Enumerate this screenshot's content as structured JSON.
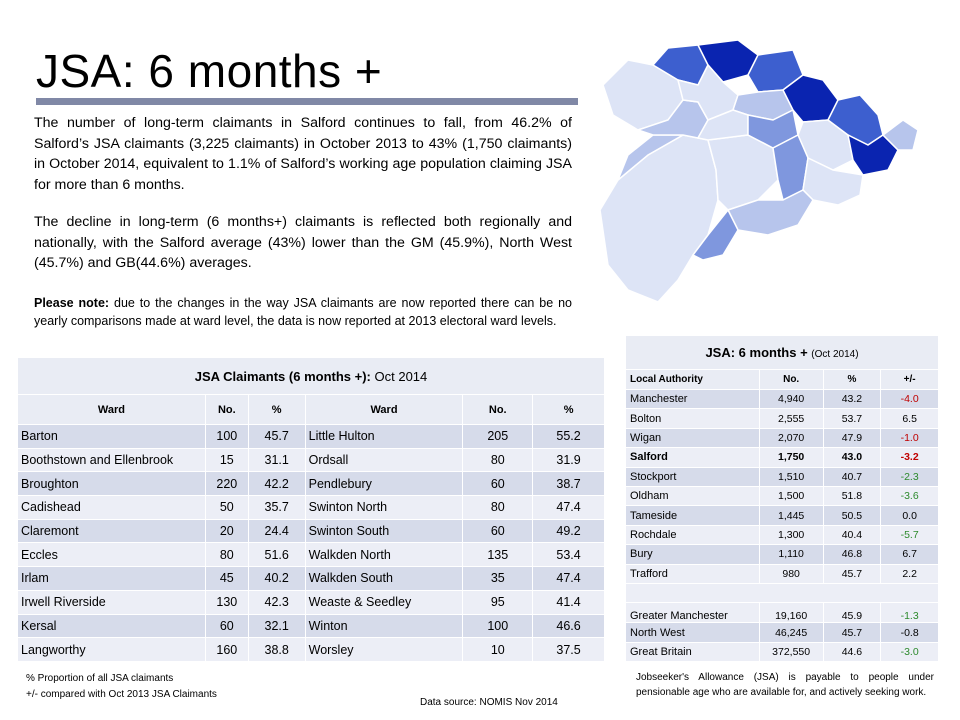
{
  "title": "JSA: 6 months +",
  "para1": "The number of long-term claimants in Salford continues to fall, from 46.2% of Salford’s JSA claimants (3,225 claimants) in October 2013 to 43% (1,750 claimants) in October 2014, equivalent to 1.1% of Salford’s working age population claiming JSA for more than 6 months.",
  "para2": "The decline in long-term (6 months+) claimants is reflected both regionally and nationally, with the Salford average (43%) lower than the GM (45.9%), North West (45.7%) and GB(44.6%) averages.",
  "note_label": "Please note:",
  "note_text": " due to the changes in the way JSA claimants are now reported there can be no yearly comparisons made at ward level, the data is now reported at 2013 electoral ward levels.",
  "map_colors": {
    "darkest": "#0a24b0",
    "dark": "#3d5fcf",
    "medium": "#7f97de",
    "light": "#b7c5ec",
    "lightest": "#dde4f6"
  },
  "ward_table": {
    "title": "JSA Claimants (6 months +):",
    "title_date": "Oct 2014",
    "headers": [
      "Ward",
      "No.",
      "%",
      "Ward",
      "No.",
      "%"
    ],
    "rows": [
      {
        "w1": "Barton",
        "n1": "100",
        "p1": "45.7",
        "w2": "Little Hulton",
        "n2": "205",
        "p2": "55.2"
      },
      {
        "w1": "Boothstown  and Ellenbrook",
        "n1": "15",
        "p1": "31.1",
        "w2": "Ordsall",
        "n2": "80",
        "p2": "31.9"
      },
      {
        "w1": "Broughton",
        "n1": "220",
        "p1": "42.2",
        "w2": "Pendlebury",
        "n2": "60",
        "p2": "38.7"
      },
      {
        "w1": "Cadishead",
        "n1": "50",
        "p1": "35.7",
        "w2": "Swinton North",
        "n2": "80",
        "p2": "47.4"
      },
      {
        "w1": "Claremont",
        "n1": "20",
        "p1": "24.4",
        "w2": "Swinton South",
        "n2": "60",
        "p2": "49.2"
      },
      {
        "w1": "Eccles",
        "n1": "80",
        "p1": "51.6",
        "w2": "Walkden North",
        "n2": "135",
        "p2": "53.4"
      },
      {
        "w1": "Irlam",
        "n1": "45",
        "p1": "40.2",
        "w2": "Walkden South",
        "n2": "35",
        "p2": "47.4"
      },
      {
        "w1": "Irwell Riverside",
        "n1": "130",
        "p1": "42.3",
        "w2": "Weaste & Seedley",
        "n2": "95",
        "p2": "41.4"
      },
      {
        "w1": "Kersal",
        "n1": "60",
        "p1": "32.1",
        "w2": "Winton",
        "n2": "100",
        "p2": "46.6"
      },
      {
        "w1": "Langworthy",
        "n1": "160",
        "p1": "38.8",
        "w2": "Worsley",
        "n2": "10",
        "p2": "37.5"
      }
    ]
  },
  "la_table": {
    "title": "JSA: 6 months +",
    "title_date": "(Oct 2014)",
    "headers": [
      "Local Authority",
      "No.",
      "%",
      "+/-"
    ],
    "rows": [
      {
        "name": "Manchester",
        "no": "4,940",
        "pct": "43.2",
        "chg": "-4.0",
        "sign": "neg"
      },
      {
        "name": "Bolton",
        "no": "2,555",
        "pct": "53.7",
        "chg": "6.5",
        "sign": "none"
      },
      {
        "name": "Wigan",
        "no": "2,070",
        "pct": "47.9",
        "chg": "-1.0",
        "sign": "neg"
      },
      {
        "name": "Salford",
        "no": "1,750",
        "pct": "43.0",
        "chg": "-3.2",
        "sign": "neg"
      },
      {
        "name": "Stockport",
        "no": "1,510",
        "pct": "40.7",
        "chg": "-2.3",
        "sign": "pos"
      },
      {
        "name": "Oldham",
        "no": "1,500",
        "pct": "51.8",
        "chg": "-3.6",
        "sign": "pos"
      },
      {
        "name": "Tameside",
        "no": "1,445",
        "pct": "50.5",
        "chg": "0.0",
        "sign": "none"
      },
      {
        "name": "Rochdale",
        "no": "1,300",
        "pct": "40.4",
        "chg": "-5.7",
        "sign": "pos"
      },
      {
        "name": "Bury",
        "no": "1,110",
        "pct": "46.8",
        "chg": "6.7",
        "sign": "none"
      },
      {
        "name": "Trafford",
        "no": "980",
        "pct": "45.7",
        "chg": "2.2",
        "sign": "none"
      }
    ],
    "totals": [
      {
        "name": "Greater Manchester",
        "no": "19,160",
        "pct": "45.9",
        "chg": "-1.3",
        "sign": "pos"
      },
      {
        "name": "North West",
        "no": "46,245",
        "pct": "45.7",
        "chg": "-0.8",
        "sign": "none"
      },
      {
        "name": "Great Britain",
        "no": "372,550",
        "pct": "44.6",
        "chg": "-3.0",
        "sign": "pos"
      }
    ]
  },
  "footnote1": "% Proportion of all JSA claimants",
  "footnote2": "+/- compared with  Oct 2013 JSA Claimants",
  "source": "Data source: NOMIS  Nov 2014",
  "jsa_definition": "Jobseeker's Allowance (JSA) is payable to people under pensionable age who are available for, and actively seeking work."
}
